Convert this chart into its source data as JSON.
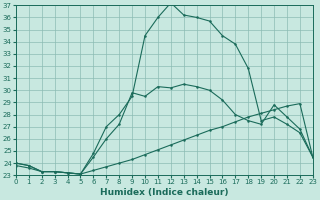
{
  "xlabel": "Humidex (Indice chaleur)",
  "xlim": [
    0,
    23
  ],
  "ylim": [
    23,
    37
  ],
  "xticks": [
    0,
    1,
    2,
    3,
    4,
    5,
    6,
    7,
    8,
    9,
    10,
    11,
    12,
    13,
    14,
    15,
    16,
    17,
    18,
    19,
    20,
    21,
    22,
    23
  ],
  "yticks": [
    23,
    24,
    25,
    26,
    27,
    28,
    29,
    30,
    31,
    32,
    33,
    34,
    35,
    36,
    37
  ],
  "background_color": "#c8e8e0",
  "grid_color": "#8cbcb4",
  "line_color": "#1a6b5a",
  "line1_x": [
    0,
    1,
    2,
    3,
    4,
    5,
    6,
    7,
    8,
    9,
    10,
    11,
    12,
    13,
    14,
    15,
    16,
    17,
    18,
    19,
    20,
    21,
    22,
    23
  ],
  "line1_y": [
    24.0,
    23.8,
    23.3,
    23.3,
    23.2,
    23.1,
    24.8,
    27.0,
    28.0,
    29.5,
    34.5,
    36.0,
    37.2,
    36.2,
    36.0,
    35.7,
    34.5,
    33.8,
    31.8,
    27.5,
    27.8,
    27.2,
    26.5,
    24.5
  ],
  "line2_x": [
    0,
    1,
    2,
    3,
    4,
    5,
    6,
    7,
    8,
    9,
    10,
    11,
    12,
    13,
    14,
    15,
    16,
    17,
    18,
    19,
    20,
    21,
    22,
    23
  ],
  "line2_y": [
    24.0,
    23.8,
    23.3,
    23.3,
    23.2,
    23.1,
    24.5,
    26.0,
    27.2,
    29.8,
    29.5,
    30.3,
    30.2,
    30.5,
    30.3,
    30.0,
    29.2,
    28.0,
    27.5,
    27.2,
    28.8,
    27.8,
    26.8,
    24.5
  ],
  "line3_x": [
    0,
    1,
    2,
    3,
    4,
    5,
    6,
    7,
    8,
    9,
    10,
    11,
    12,
    13,
    14,
    15,
    16,
    17,
    18,
    19,
    20,
    21,
    22,
    23
  ],
  "line3_y": [
    23.8,
    23.6,
    23.3,
    23.3,
    23.2,
    23.1,
    23.4,
    23.7,
    24.0,
    24.3,
    24.7,
    25.1,
    25.5,
    25.9,
    26.3,
    26.7,
    27.0,
    27.4,
    27.8,
    28.1,
    28.4,
    28.7,
    28.9,
    24.5
  ],
  "tick_fontsize": 5,
  "xlabel_fontsize": 6.5,
  "marker_size": 1.8,
  "linewidth": 0.8
}
